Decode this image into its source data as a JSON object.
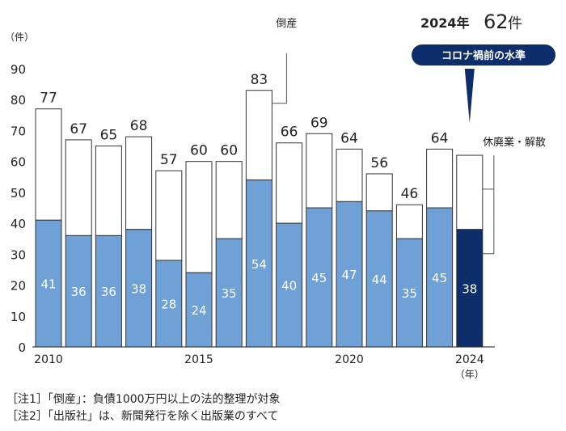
{
  "chart_data": {
    "type": "bar",
    "stacked": true,
    "years": [
      2010,
      2011,
      2012,
      2013,
      2014,
      2015,
      2016,
      2017,
      2018,
      2019,
      2020,
      2021,
      2022,
      2023,
      2024
    ],
    "x_tick_labels": [
      "2010",
      "2015",
      "2020",
      "2024"
    ],
    "x_tick_years": [
      2010,
      2015,
      2020,
      2024
    ],
    "x_unit": "（年）",
    "y_unit": "（件）",
    "ylim": [
      0,
      90
    ],
    "y_ticks": [
      0,
      10,
      20,
      30,
      40,
      50,
      60,
      70,
      80,
      90
    ],
    "series": [
      {
        "name": "倒産",
        "values": [
          41,
          36,
          36,
          38,
          28,
          24,
          35,
          54,
          40,
          45,
          47,
          44,
          35,
          45,
          38
        ]
      },
      {
        "name": "休廃業・解散",
        "values": [
          36,
          31,
          29,
          30,
          29,
          36,
          25,
          29,
          26,
          24,
          17,
          12,
          11,
          19,
          24
        ]
      }
    ],
    "totals": [
      77,
      67,
      65,
      68,
      57,
      60,
      60,
      83,
      66,
      69,
      64,
      56,
      46,
      64,
      62
    ],
    "colors": {
      "bankruptcy": "#6fa0d6",
      "bankruptcy_highlight": "#0d2d6b",
      "closure": "#ffffff",
      "outline": "#333333",
      "badge": "#0d2d6b"
    },
    "grid": false,
    "headline": {
      "year_label": "2024年",
      "count": "62",
      "unit": "件"
    },
    "badge_text": "コロナ禍前の水準",
    "notes": [
      "［注1］「倒産」：負債1000万円以上の法的整理が対象",
      "［注2］「出版社」は、新聞発行を除く出版業のすべて"
    ]
  }
}
